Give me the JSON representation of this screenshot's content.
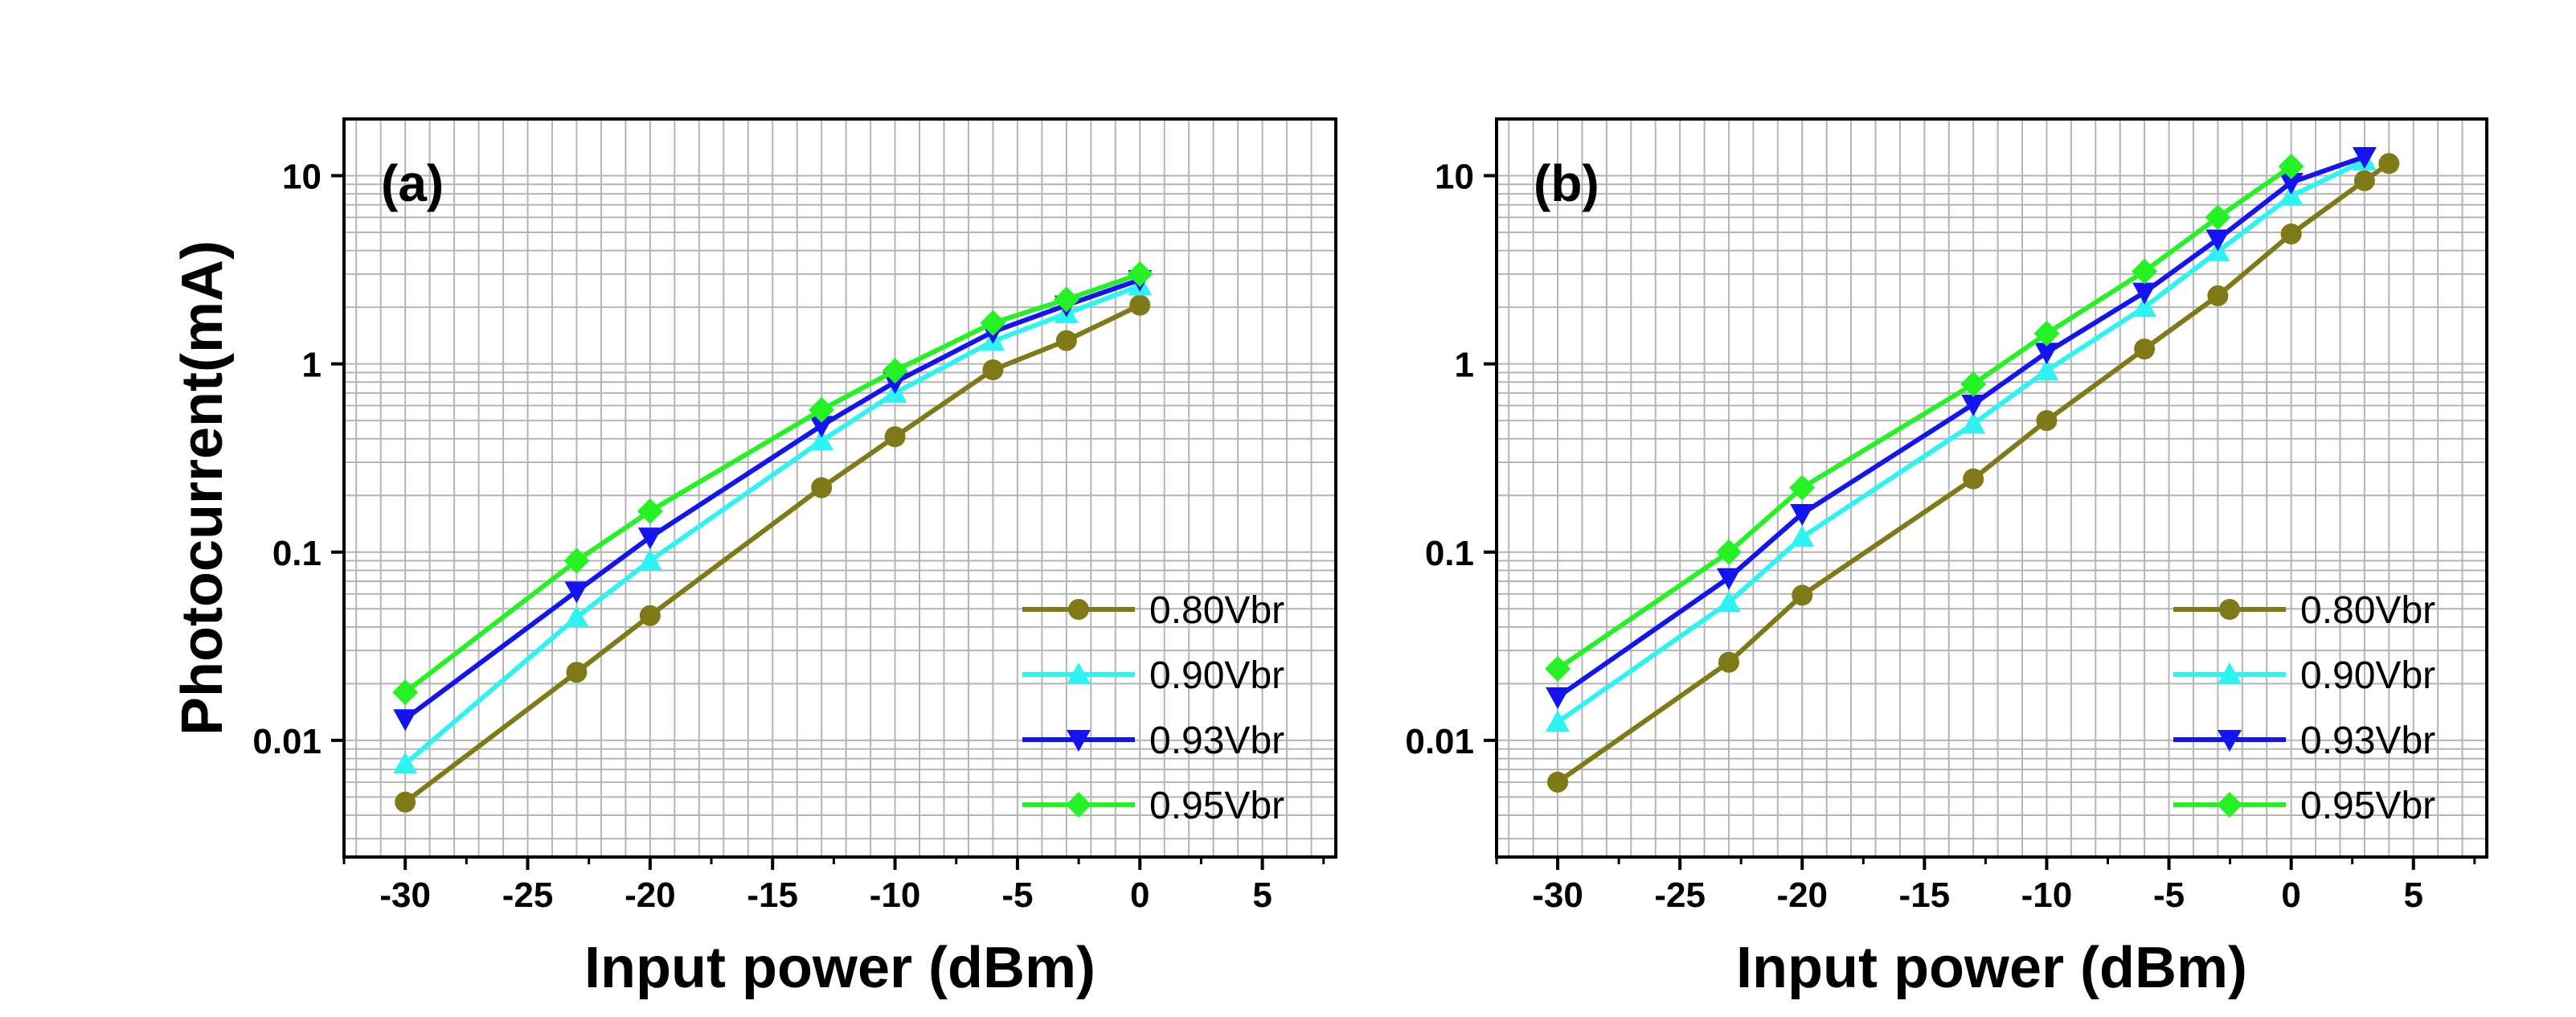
{
  "colors": {
    "0.80Vbr": "#7f7a17",
    "0.90Vbr": "#2ff2f2",
    "0.93Vbr": "#1414f0",
    "0.95Vbr": "#25f225",
    "grid": "#b4b4b4",
    "frame": "#000000"
  },
  "chart_data": [
    {
      "type": "line",
      "panel_label": "(a)",
      "xlabel": "Input power (dBm)",
      "ylabel": "Photocurrent(mA)",
      "xlim": [
        -32.5,
        8
      ],
      "ylim": [
        0.0024,
        20
      ],
      "yscale": "log",
      "grid": true,
      "legend_position": "bottom-right",
      "x_ticks": [
        -30,
        -25,
        -20,
        -15,
        -10,
        -5,
        0,
        5
      ],
      "x_tick_labels": [
        "-30",
        "-25",
        "-20",
        "-15",
        "-10",
        "-5",
        "0",
        "5"
      ],
      "y_ticks": [
        0.01,
        0.1,
        1,
        10
      ],
      "y_tick_labels": [
        "0.01",
        "0.1",
        "1",
        "10"
      ],
      "series": [
        {
          "name": "0.80Vbr",
          "marker": "circle",
          "x": [
            -30,
            -23,
            -20,
            -13,
            -10,
            -6,
            -3,
            0
          ],
          "y": [
            0.0047,
            0.023,
            0.046,
            0.22,
            0.41,
            0.93,
            1.33,
            2.05
          ]
        },
        {
          "name": "0.90Vbr",
          "marker": "triangle-up",
          "x": [
            -30,
            -23,
            -20,
            -13,
            -10,
            -6,
            -3,
            0
          ],
          "y": [
            0.0075,
            0.045,
            0.09,
            0.39,
            0.7,
            1.32,
            1.85,
            2.6
          ]
        },
        {
          "name": "0.93Vbr",
          "marker": "triangle-down",
          "x": [
            -30,
            -23,
            -20,
            -13,
            -10,
            -6,
            -3,
            0
          ],
          "y": [
            0.013,
            0.062,
            0.12,
            0.47,
            0.8,
            1.48,
            2.05,
            2.8
          ]
        },
        {
          "name": "0.95Vbr",
          "marker": "diamond",
          "x": [
            -30,
            -23,
            -20,
            -13,
            -10,
            -6,
            -3,
            0
          ],
          "y": [
            0.018,
            0.09,
            0.165,
            0.57,
            0.92,
            1.65,
            2.2,
            3.0
          ]
        }
      ]
    },
    {
      "type": "line",
      "panel_label": "(b)",
      "xlabel": "Input power (dBm)",
      "ylabel": "",
      "xlim": [
        -32.5,
        8
      ],
      "ylim": [
        0.0024,
        20
      ],
      "yscale": "log",
      "grid": true,
      "legend_position": "bottom-right",
      "x_ticks": [
        -30,
        -25,
        -20,
        -15,
        -10,
        -5,
        0,
        5
      ],
      "x_tick_labels": [
        "-30",
        "-25",
        "-20",
        "-15",
        "-10",
        "-5",
        "0",
        "5"
      ],
      "y_ticks": [
        0.01,
        0.1,
        1,
        10
      ],
      "y_tick_labels": [
        "0.01",
        "0.1",
        "1",
        "10"
      ],
      "series": [
        {
          "name": "0.80Vbr",
          "marker": "circle",
          "x": [
            -30,
            -23,
            -20,
            -13,
            -10,
            -6,
            -3,
            0,
            3,
            4
          ],
          "y": [
            0.006,
            0.026,
            0.059,
            0.245,
            0.5,
            1.2,
            2.3,
            4.9,
            9.4,
            11.6
          ]
        },
        {
          "name": "0.90Vbr",
          "marker": "triangle-up",
          "x": [
            -30,
            -23,
            -20,
            -13,
            -10,
            -6,
            -3,
            0,
            3
          ],
          "y": [
            0.0125,
            0.054,
            0.12,
            0.48,
            0.92,
            2.0,
            3.95,
            7.8,
            12.0
          ]
        },
        {
          "name": "0.93Vbr",
          "marker": "triangle-down",
          "x": [
            -30,
            -23,
            -20,
            -13,
            -10,
            -6,
            -3,
            0,
            3
          ],
          "y": [
            0.017,
            0.073,
            0.16,
            0.61,
            1.15,
            2.4,
            4.6,
            9.2,
            12.6
          ]
        },
        {
          "name": "0.95Vbr",
          "marker": "diamond",
          "x": [
            -30,
            -23,
            -20,
            -13,
            -10,
            -6,
            -3,
            0
          ],
          "y": [
            0.024,
            0.1,
            0.22,
            0.78,
            1.45,
            3.1,
            6.0,
            11.2
          ]
        }
      ]
    }
  ]
}
